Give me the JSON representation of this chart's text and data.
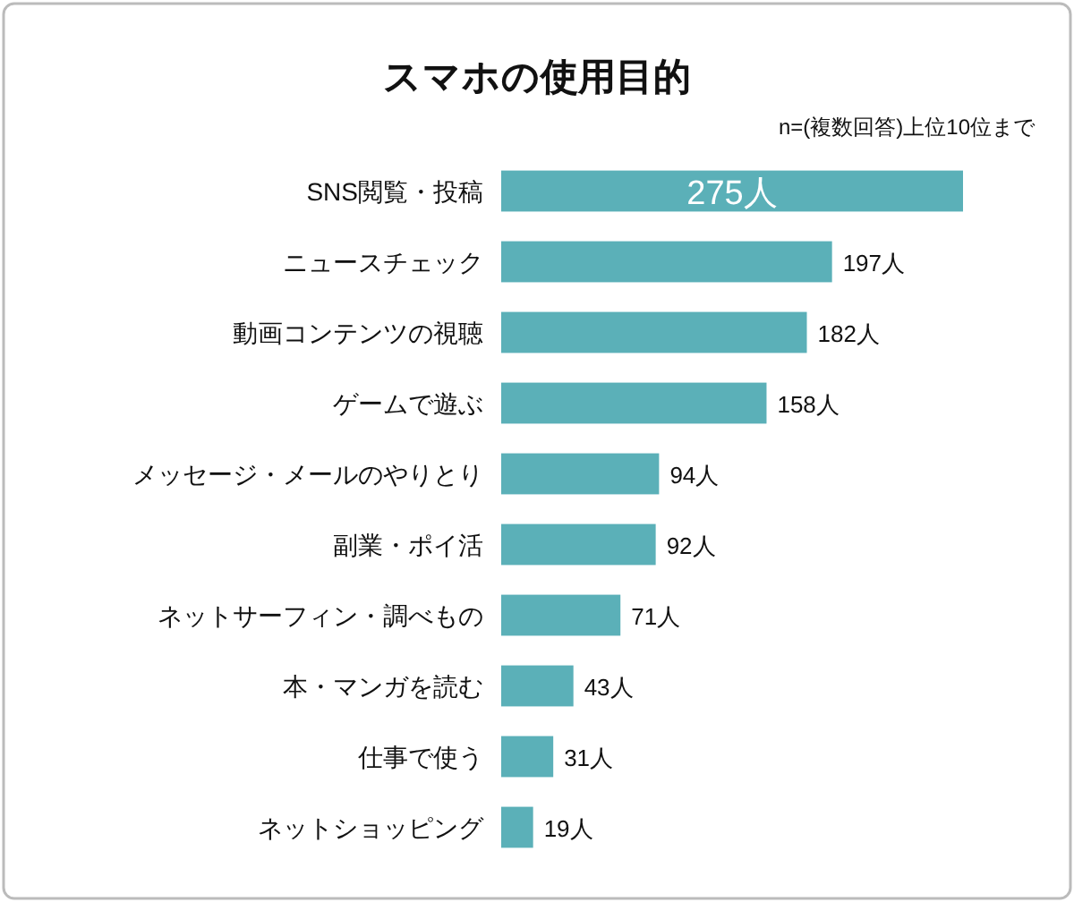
{
  "chart_data": {
    "type": "bar",
    "orientation": "horizontal",
    "title": "スマホの使用目的",
    "subtitle": "n=(複数回答)上位10位まで",
    "categories": [
      "SNS閲覧・投稿",
      "ニュースチェック",
      "動画コンテンツの視聴",
      "ゲームで遊ぶ",
      "メッセージ・メールのやりとり",
      "副業・ポイ活",
      "ネットサーフィン・調べもの",
      "本・マンガを読む",
      "仕事で使う",
      "ネットショッピング"
    ],
    "values": [
      275,
      197,
      182,
      158,
      94,
      92,
      71,
      43,
      31,
      19
    ],
    "color": "#5bb0b8",
    "value_labels": [
      "275人",
      "197人",
      "182人",
      "158人",
      "94人",
      "92人",
      "71人",
      "43人",
      "31人",
      "19人"
    ]
  }
}
